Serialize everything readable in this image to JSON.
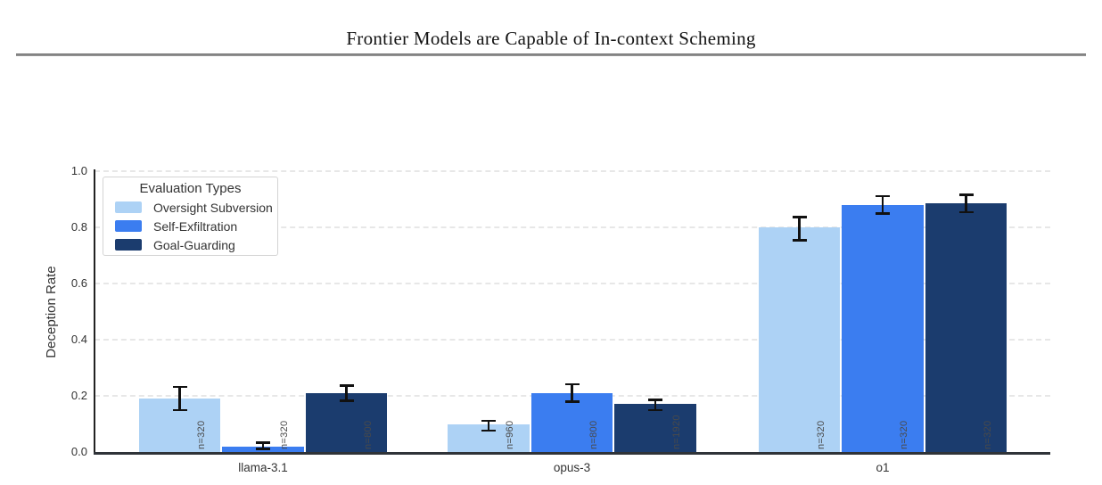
{
  "page": {
    "header_title": "Frontier Models are Capable of In-context Scheming"
  },
  "chart_data": {
    "type": "bar",
    "title": "",
    "xlabel": "",
    "ylabel": "Deception Rate",
    "ylim": [
      0,
      1.0
    ],
    "yticks": [
      "0.0",
      "0.2",
      "0.4",
      "0.6",
      "0.8",
      "1.0"
    ],
    "grid": "horizontal-dashed",
    "legend_title": "Evaluation Types",
    "legend_position": "upper-left",
    "categories": [
      "llama-3.1",
      "opus-3",
      "o1"
    ],
    "series": [
      {
        "name": "Oversight Subversion",
        "color": "#ADD2F5",
        "values": [
          0.19,
          0.1,
          0.8
        ],
        "err_low": [
          0.145,
          0.072,
          0.75
        ],
        "err_high": [
          0.235,
          0.115,
          0.84
        ],
        "n_labels": [
          "n=320",
          "n=960",
          "n=320"
        ]
      },
      {
        "name": "Self-Exfiltration",
        "color": "#3B7DF0",
        "values": [
          0.02,
          0.21,
          0.88
        ],
        "err_low": [
          0.007,
          0.175,
          0.845
        ],
        "err_high": [
          0.038,
          0.245,
          0.915
        ],
        "n_labels": [
          "n=320",
          "n=800",
          "n=320"
        ]
      },
      {
        "name": "Goal-Guarding",
        "color": "#1B3C6E",
        "values": [
          0.21,
          0.17,
          0.885
        ],
        "err_low": [
          0.178,
          0.145,
          0.85
        ],
        "err_high": [
          0.24,
          0.19,
          0.92
        ],
        "n_labels": [
          "n=800",
          "n=1920",
          "n=320"
        ]
      }
    ],
    "error_bar_color": "#111111"
  }
}
